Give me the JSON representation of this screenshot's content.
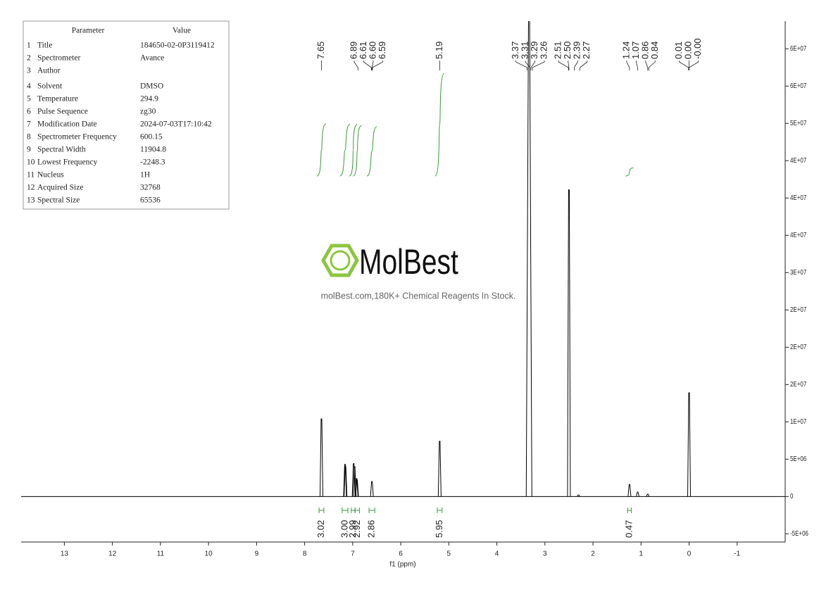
{
  "table": {
    "header": [
      "Parameter",
      "Value"
    ],
    "rows": [
      [
        "1",
        "Title",
        "184650-02-0P3119412"
      ],
      [
        "2",
        "Spectrometer",
        "Avance"
      ],
      [
        "3",
        "Author"
      ],
      [
        "4",
        "Solvent",
        "DMSO"
      ],
      [
        "5",
        "Temperature",
        "294.9"
      ],
      [
        "6",
        "Pulse Sequence",
        "zg30"
      ],
      [
        "7",
        "Modification Date",
        "2024-07-03T17:10:42"
      ],
      [
        "8",
        "Spectrometer Frequency",
        "600.15"
      ],
      [
        "9",
        "Spectral Width",
        "11904.8"
      ],
      [
        "10",
        "Lowest Frequency",
        "-2248.3"
      ],
      [
        "11",
        "Nucleus",
        "1H"
      ],
      [
        "12",
        "Acquired Size",
        "32768"
      ],
      [
        "13",
        "Spectral Size",
        "65536"
      ]
    ]
  },
  "watermark": {
    "brand": "MolBest",
    "tagline": "molBest.com,180K+ Chemical Reagents In Stock."
  },
  "chart_data": {
    "type": "spectrum",
    "xlabel": "f1 (ppm)",
    "color": "#000000",
    "integral_color": "#3a9a3a",
    "xlim": [
      13.9,
      -2.0
    ],
    "xticks": [
      13,
      12,
      11,
      10,
      9,
      8,
      7,
      6,
      5,
      4,
      3,
      2,
      1,
      0,
      -1
    ],
    "ylim": [
      -6100000,
      63700000
    ],
    "yticks": [
      {
        "value": -5000000,
        "label": "-5E+06"
      },
      0,
      {
        "value": 5000000,
        "label": "5E+06"
      },
      {
        "value": 10000000,
        "label": "1E+07"
      },
      {
        "value": 15000000,
        "label": "2E+07"
      },
      {
        "value": 20000000,
        "label": "2E+07"
      },
      {
        "value": 25000000,
        "label": "2E+07"
      },
      {
        "value": 30000000,
        "label": "3E+07"
      },
      {
        "value": 35000000,
        "label": "4E+07"
      },
      {
        "value": 40000000,
        "label": "4E+07"
      },
      {
        "value": 45000000,
        "label": "4E+07"
      },
      {
        "value": 50000000,
        "label": "5E+07"
      },
      {
        "value": 55000000,
        "label": "6E+07"
      },
      {
        "value": 60000000,
        "label": "6E+07"
      }
    ],
    "x": [
      7.65,
      7.16,
      7.15,
      6.98,
      6.96,
      6.92,
      6.91,
      6.6,
      5.19,
      3.33,
      2.5,
      2.3,
      1.24,
      1.07,
      0.86,
      0.0
    ],
    "values": [
      10400000,
      4300000,
      4000000,
      4400000,
      4000000,
      2400000,
      2200000,
      2000000,
      7400000,
      70000000,
      41100000,
      200000,
      1600000,
      600000,
      300000,
      13900000
    ],
    "peak_picks": [
      7.65,
      6.89,
      6.61,
      {
        "value": 6.6,
        "label": "6.60"
      },
      6.59,
      5.19,
      3.37,
      3.31,
      3.29,
      3.26,
      2.51,
      {
        "value": 2.5,
        "label": "2.50"
      },
      2.39,
      2.27,
      1.24,
      1.07,
      0.86,
      0.84,
      0.01,
      {
        "value": 0,
        "label": "0.00"
      },
      {
        "value": 0,
        "label": "-0.00"
      }
    ],
    "integrals": {
      "ranges": [
        [
          7.7,
          7.6
        ],
        [
          7.22,
          7.1
        ],
        [
          7.03,
          6.95
        ],
        [
          6.95,
          6.86
        ],
        [
          6.66,
          6.54
        ],
        [
          5.24,
          5.14
        ],
        [
          1.28,
          1.2
        ]
      ],
      "values": [
        3.02,
        3,
        2.99,
        2.92,
        2.86,
        5.95,
        0.47
      ],
      "value_labels": [
        "3.02",
        "3.00",
        "2.99",
        "2.92",
        "2.86",
        "5.95",
        "0.47"
      ]
    }
  }
}
